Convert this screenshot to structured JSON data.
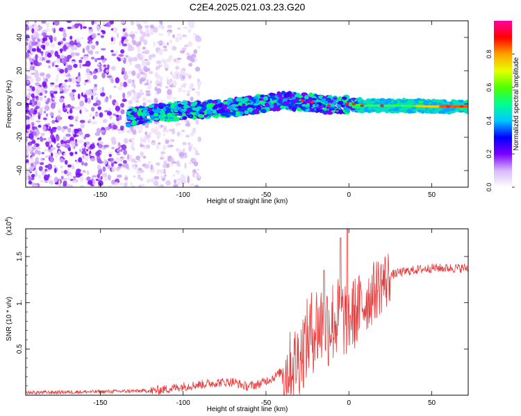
{
  "title": "C2E4.2025.021.03.23.G20",
  "chart_data": [
    {
      "type": "heatmap",
      "name": "spectrogram",
      "xlabel": "Height of straight line (km)",
      "ylabel": "Frequency (Hz)",
      "xlim": [
        -195,
        72
      ],
      "ylim": [
        -50,
        50
      ],
      "x_ticks": [
        -150,
        -100,
        -50,
        0,
        50
      ],
      "y_ticks": [
        -40,
        -20,
        0,
        20,
        40
      ],
      "colorbar": {
        "label": "Normalized spectral amplitude",
        "range": [
          0,
          1
        ],
        "ticks": [
          "0.0",
          "0.2",
          "0.4",
          "0.6",
          "0.8"
        ],
        "tick_values": [
          0.0,
          0.2,
          0.4,
          0.6,
          0.8
        ],
        "colors": [
          "#ffffff",
          "#d8b8f8",
          "#7a00ff",
          "#0000ff",
          "#00c8ff",
          "#00ff90",
          "#50ff00",
          "#e8ff00",
          "#ffa000",
          "#ff0000",
          "#ff00a0"
        ]
      },
      "ridge_frequency": [
        [
          -133,
          -8
        ],
        [
          -120,
          -6
        ],
        [
          -100,
          -4
        ],
        [
          -80,
          -3
        ],
        [
          -60,
          -1
        ],
        [
          -40,
          2
        ],
        [
          -25,
          1
        ],
        [
          -15,
          0
        ],
        [
          -5,
          -1
        ],
        [
          0,
          0
        ],
        [
          10,
          -1
        ],
        [
          30,
          -1
        ],
        [
          50,
          -1.5
        ],
        [
          72,
          -1.5
        ]
      ],
      "noise_region": [
        -195,
        -110
      ]
    },
    {
      "type": "line",
      "name": "snr",
      "xlabel": "Height of straight line (km)",
      "ylabel": "SNR (10 * v/v)",
      "scale_label": "(x10",
      "scale_exp": "4",
      "scale_close": ")",
      "xlim": [
        -195,
        72
      ],
      "ylim": [
        0,
        1.8
      ],
      "x_ticks": [
        -150,
        -100,
        -50,
        0,
        50
      ],
      "y_ticks": [
        0.5,
        1.0,
        1.5
      ],
      "y_tick_labels": [
        "0.5",
        "1.",
        "1.5"
      ],
      "color": "#e83a3a",
      "envelope": [
        [
          -195,
          0.03
        ],
        [
          -150,
          0.04
        ],
        [
          -120,
          0.05
        ],
        [
          -110,
          0.07
        ],
        [
          -100,
          0.1
        ],
        [
          -90,
          0.12
        ],
        [
          -80,
          0.14
        ],
        [
          -70,
          0.15
        ],
        [
          -62,
          0.1
        ],
        [
          -55,
          0.12
        ],
        [
          -45,
          0.2
        ],
        [
          -38,
          0.3
        ],
        [
          -30,
          0.45
        ],
        [
          -25,
          0.65
        ],
        [
          -20,
          0.8
        ],
        [
          -15,
          0.82
        ],
        [
          -10,
          0.85
        ],
        [
          -5,
          0.88
        ],
        [
          0,
          0.88
        ],
        [
          5,
          0.95
        ],
        [
          10,
          1.05
        ],
        [
          15,
          1.15
        ],
        [
          20,
          1.25
        ],
        [
          25,
          1.3
        ],
        [
          30,
          1.33
        ],
        [
          40,
          1.36
        ],
        [
          50,
          1.38
        ],
        [
          60,
          1.38
        ],
        [
          72,
          1.38
        ]
      ],
      "peaks": [
        [
          -1,
          1.8
        ],
        [
          -5,
          1.7
        ],
        [
          -15,
          1.35
        ]
      ]
    }
  ]
}
